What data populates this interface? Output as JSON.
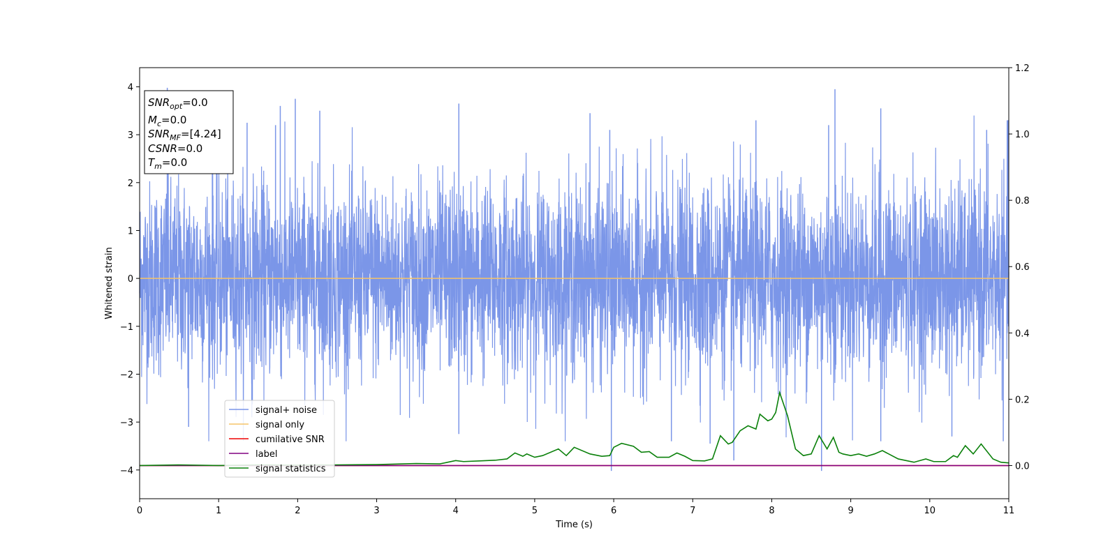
{
  "chart_data": {
    "type": "line",
    "xlabel": "Time (s)",
    "ylabel": "Whitened strain",
    "xlim": [
      0,
      11
    ],
    "ylim": [
      -4.6,
      4.4
    ],
    "y2lim": [
      -0.1,
      1.2
    ],
    "x_ticks": [
      "0",
      "1",
      "2",
      "3",
      "4",
      "5",
      "6",
      "7",
      "8",
      "9",
      "10",
      "11"
    ],
    "y_ticks": [
      "4",
      "3",
      "2",
      "1",
      "0",
      "−1",
      "−2",
      "−3",
      "−4"
    ],
    "y2_ticks": [
      "1.2",
      "1.0",
      "0.8",
      "0.6",
      "0.4",
      "0.2",
      "0.0"
    ],
    "grid": false,
    "legend_position": "lower-left",
    "info_box": {
      "lines": [
        {
          "base": "SNR",
          "sub": "opt",
          "value": "=0.0"
        },
        {
          "base": "M",
          "sub": "c",
          "value": "=0.0"
        },
        {
          "base": "SNR",
          "sub": "MF",
          "value": "=[4.24]"
        },
        {
          "base": "CSNR",
          "sub": "",
          "value": "=0.0"
        },
        {
          "base": "T",
          "sub": "m",
          "value": "=0.0"
        }
      ]
    },
    "series": [
      {
        "name": "signal+ noise",
        "color": "#7b96e8",
        "axis": "left",
        "description": "dense whitened noise, approx. uniform amplitude",
        "noise_sigma": 1.0,
        "peaks": [
          {
            "x": 0.35,
            "y": 3.98
          },
          {
            "x": 0.92,
            "y": 3.3
          },
          {
            "x": 1.36,
            "y": 3.25
          },
          {
            "x": 1.72,
            "y": 3.2
          },
          {
            "x": 1.78,
            "y": 3.6
          },
          {
            "x": 1.97,
            "y": 3.75
          },
          {
            "x": 2.28,
            "y": 3.5
          },
          {
            "x": 4.04,
            "y": 3.65
          },
          {
            "x": 5.7,
            "y": 3.45
          },
          {
            "x": 5.95,
            "y": 3.1
          },
          {
            "x": 7.8,
            "y": 3.3
          },
          {
            "x": 8.72,
            "y": 3.2
          },
          {
            "x": 8.8,
            "y": 3.95
          },
          {
            "x": 9.38,
            "y": 3.55
          },
          {
            "x": 10.72,
            "y": 3.1
          },
          {
            "x": 10.98,
            "y": 3.3
          }
        ],
        "troughs": [
          {
            "x": 0.62,
            "y": -3.1
          },
          {
            "x": 1.42,
            "y": -2.9
          },
          {
            "x": 4.04,
            "y": -3.25
          },
          {
            "x": 5.97,
            "y": -4.02
          },
          {
            "x": 6.73,
            "y": -3.4
          },
          {
            "x": 7.22,
            "y": -3.45
          },
          {
            "x": 7.52,
            "y": -3.8
          },
          {
            "x": 8.63,
            "y": -4.02
          },
          {
            "x": 9.38,
            "y": -3.4
          },
          {
            "x": 10.28,
            "y": -3.3
          },
          {
            "x": 10.93,
            "y": -3.4
          }
        ]
      },
      {
        "name": "signal only",
        "color": "#f5c469",
        "axis": "left",
        "x": [
          0,
          11
        ],
        "y": [
          0,
          0
        ]
      },
      {
        "name": "cumilative SNR",
        "color": "#ee0000",
        "axis": "right",
        "x": [
          0,
          11
        ],
        "y": [
          0,
          0
        ]
      },
      {
        "name": "label",
        "color": "#800080",
        "axis": "right",
        "x": [
          0,
          11
        ],
        "y": [
          0,
          0
        ]
      },
      {
        "name": "signal statistics",
        "color": "#0a800a",
        "axis": "right",
        "x": [
          0,
          0.5,
          1.0,
          1.5,
          2.0,
          2.5,
          3.0,
          3.5,
          3.8,
          3.9,
          4.0,
          4.1,
          4.3,
          4.5,
          4.65,
          4.75,
          4.85,
          4.9,
          5.0,
          5.1,
          5.3,
          5.4,
          5.5,
          5.7,
          5.85,
          5.95,
          6.0,
          6.1,
          6.25,
          6.35,
          6.45,
          6.55,
          6.7,
          6.8,
          6.9,
          7.0,
          7.15,
          7.25,
          7.35,
          7.45,
          7.5,
          7.6,
          7.7,
          7.8,
          7.85,
          7.95,
          8.0,
          8.05,
          8.1,
          8.2,
          8.3,
          8.4,
          8.5,
          8.6,
          8.7,
          8.78,
          8.85,
          8.9,
          9.0,
          9.1,
          9.2,
          9.3,
          9.4,
          9.6,
          9.8,
          9.95,
          10.05,
          10.2,
          10.3,
          10.35,
          10.45,
          10.55,
          10.65,
          10.8,
          10.9,
          11.0
        ],
        "y": [
          0.0,
          0.002,
          0.0,
          0.002,
          0.001,
          0.002,
          0.003,
          0.006,
          0.005,
          0.01,
          0.015,
          0.012,
          0.014,
          0.016,
          0.02,
          0.038,
          0.028,
          0.035,
          0.025,
          0.03,
          0.05,
          0.03,
          0.055,
          0.035,
          0.028,
          0.03,
          0.055,
          0.067,
          0.058,
          0.04,
          0.042,
          0.025,
          0.025,
          0.038,
          0.028,
          0.015,
          0.014,
          0.02,
          0.09,
          0.065,
          0.07,
          0.105,
          0.12,
          0.11,
          0.155,
          0.135,
          0.14,
          0.16,
          0.22,
          0.15,
          0.05,
          0.03,
          0.035,
          0.09,
          0.05,
          0.085,
          0.04,
          0.035,
          0.03,
          0.035,
          0.028,
          0.035,
          0.045,
          0.02,
          0.01,
          0.02,
          0.012,
          0.012,
          0.03,
          0.025,
          0.06,
          0.035,
          0.065,
          0.02,
          0.01,
          0.008
        ]
      }
    ]
  }
}
